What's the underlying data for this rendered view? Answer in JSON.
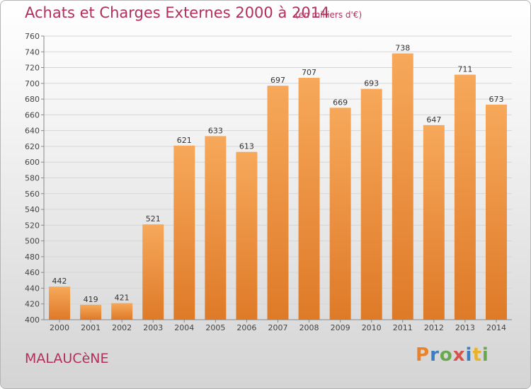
{
  "header": {
    "title": "Achats et Charges Externes 2000 à 2014",
    "unit": "(en milliers d'€)"
  },
  "footer": {
    "place": "MALAUCèNE",
    "logo": "Proxiti",
    "logo_colors": [
      "#e8832a",
      "#3a7fc1",
      "#6aa84f",
      "#d9524a",
      "#3a7fc1",
      "#e8b32a",
      "#6aa84f"
    ]
  },
  "colors": {
    "bar_top": "#f7a85a",
    "bar_bottom": "#de7a28",
    "grid": "#d6d6d6",
    "axis": "#888888"
  },
  "chart_data": {
    "type": "bar",
    "categories": [
      "2000",
      "2001",
      "2002",
      "2003",
      "2004",
      "2005",
      "2006",
      "2007",
      "2008",
      "2009",
      "2010",
      "2011",
      "2012",
      "2013",
      "2014"
    ],
    "values": [
      442,
      419,
      421,
      521,
      621,
      633,
      613,
      697,
      707,
      669,
      693,
      738,
      647,
      711,
      673
    ],
    "ylim": [
      400,
      760
    ],
    "ytick_step": 20,
    "grid": true,
    "title": "Achats et Charges Externes 2000 à 2014",
    "xlabel": "",
    "ylabel": ""
  }
}
